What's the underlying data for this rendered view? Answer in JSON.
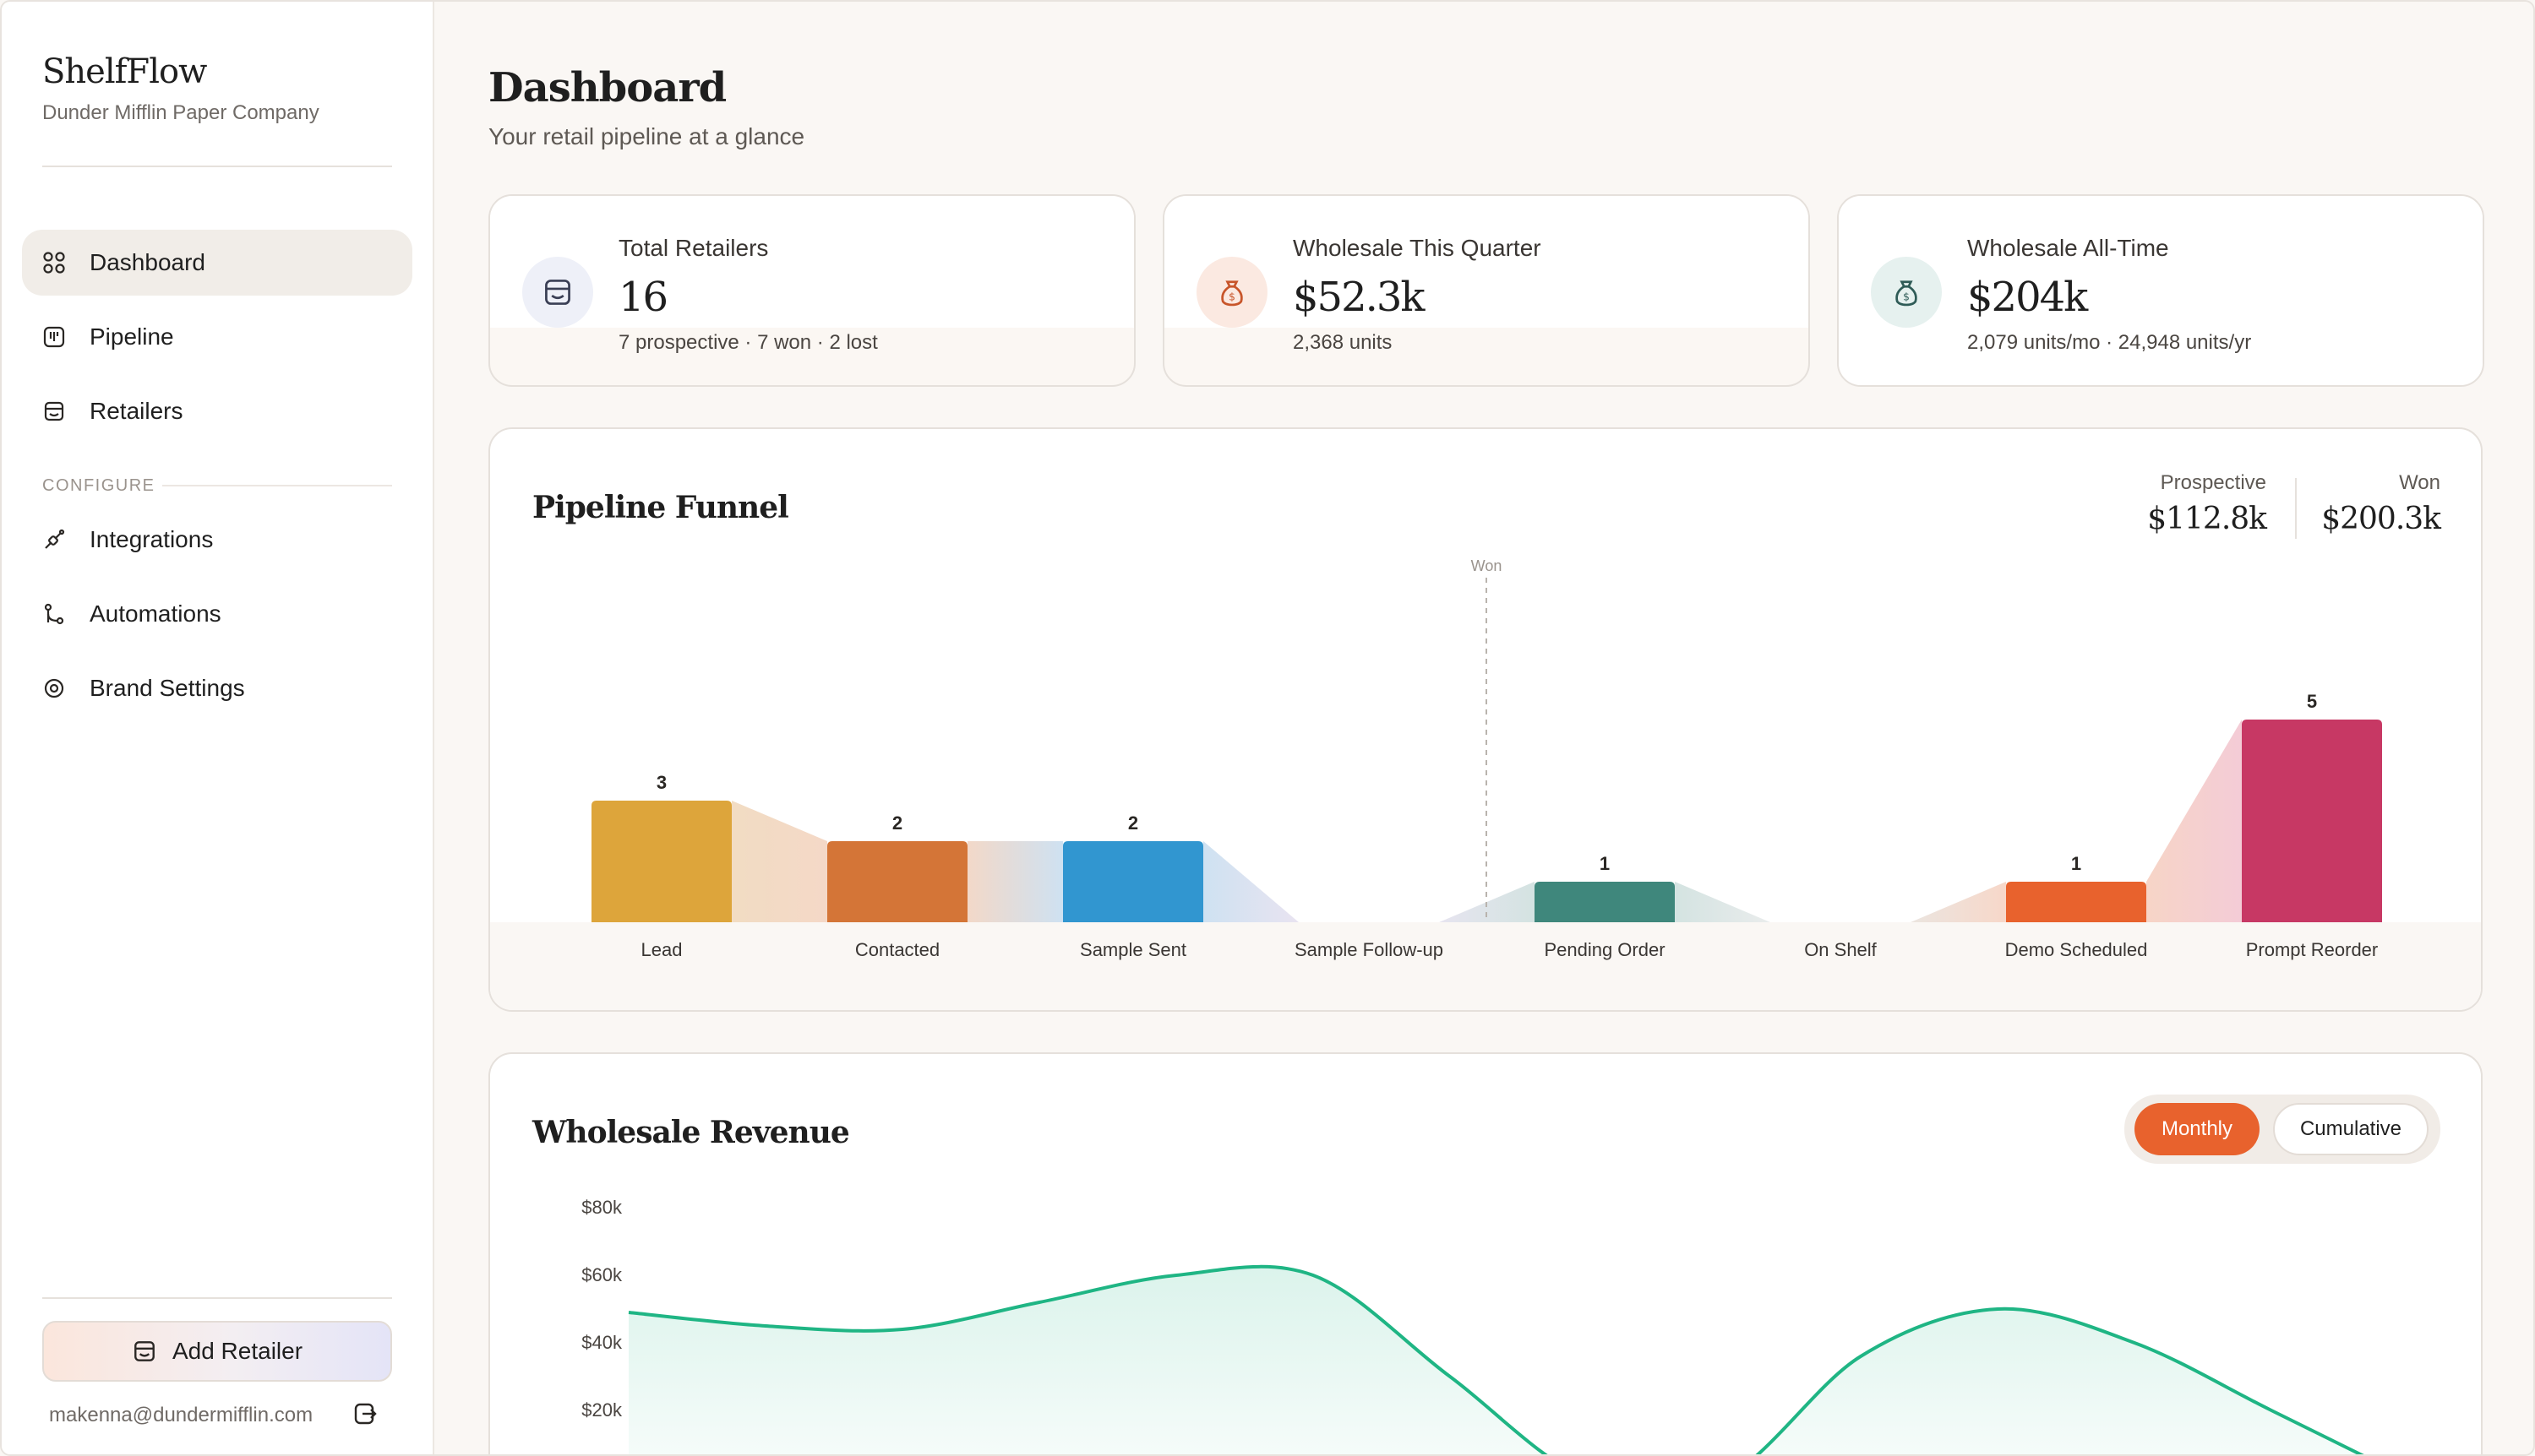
{
  "brand": {
    "name": "ShelfFlow",
    "company": "Dunder Mifflin Paper Company"
  },
  "nav": {
    "items": [
      {
        "label": "Dashboard",
        "icon": "grid-icon",
        "active": true
      },
      {
        "label": "Pipeline",
        "icon": "pipeline-icon"
      },
      {
        "label": "Retailers",
        "icon": "store-icon"
      }
    ],
    "section_label": "CONFIGURE",
    "config_items": [
      {
        "label": "Integrations",
        "icon": "plug-icon"
      },
      {
        "label": "Automations",
        "icon": "branch-icon"
      },
      {
        "label": "Brand Settings",
        "icon": "gear-icon"
      }
    ]
  },
  "sidebar_footer": {
    "add_label": "Add Retailer",
    "email": "makenna@dundermifflin.com"
  },
  "header": {
    "title": "Dashboard",
    "subtitle": "Your retail pipeline at a glance"
  },
  "stats": [
    {
      "label": "Total Retailers",
      "value": "16",
      "sub": "7 prospective · 7 won · 2 lost",
      "icon": "store-icon",
      "color": "#eef0f8"
    },
    {
      "label": "Wholesale This Quarter",
      "value": "$52.3k",
      "sub": "2,368 units",
      "icon": "money-bag-icon",
      "color": "#fbe9e1"
    },
    {
      "label": "Wholesale All-Time",
      "value": "$204k",
      "sub": "2,079 units/mo · 24,948 units/yr",
      "icon": "money-bag-icon",
      "color": "#e6f1ef"
    }
  ],
  "funnel": {
    "title": "Pipeline Funnel",
    "prospective_label": "Prospective",
    "prospective_value": "$112.8k",
    "won_label": "Won",
    "won_value": "$200.3k",
    "won_marker": "Won"
  },
  "chart_data": [
    {
      "type": "bar",
      "title": "Pipeline Funnel",
      "categories": [
        "Lead",
        "Contacted",
        "Sample Sent",
        "Sample Follow-up",
        "Pending Order",
        "On Shelf",
        "Demo Scheduled",
        "Prompt Reorder"
      ],
      "values": [
        3,
        2,
        2,
        0,
        1,
        0,
        1,
        5
      ],
      "colors": [
        "#dda53b",
        "#d47537",
        "#3196d0",
        "#cccccc",
        "#3f877c",
        "#cccccc",
        "#e8622d",
        "#c73864"
      ],
      "ylim": [
        0,
        5
      ]
    },
    {
      "type": "area",
      "title": "Wholesale Revenue",
      "y_ticks": [
        "$80k",
        "$60k",
        "$40k",
        "$20k"
      ],
      "ylim": [
        0,
        80000
      ],
      "series": [
        {
          "values": [
            49000,
            45000,
            44000,
            52000,
            60000,
            60000,
            30000,
            0,
            0,
            36000,
            50000,
            40000,
            20000,
            0
          ]
        }
      ],
      "color": "#1fb584"
    }
  ],
  "revenue": {
    "title": "Wholesale Revenue",
    "toggle_monthly": "Monthly",
    "toggle_cumulative": "Cumulative"
  }
}
